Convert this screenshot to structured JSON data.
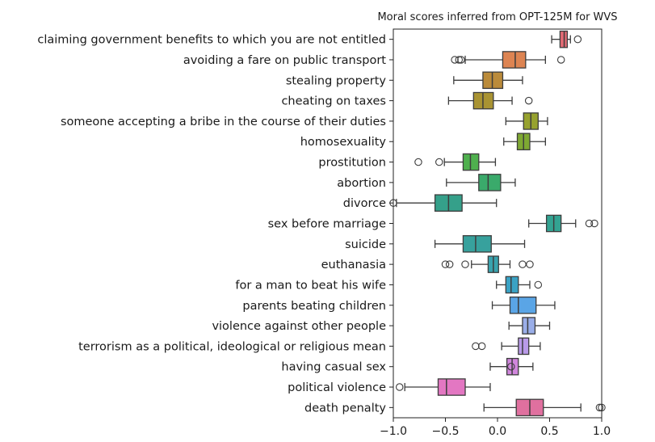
{
  "chart_data": {
    "type": "boxplot",
    "orientation": "horizontal",
    "title": "Moral scores inferred from OPT-125M for WVS",
    "xlabel": "",
    "ylabel": "",
    "xlim": [
      -1.0,
      1.0
    ],
    "xticks": [
      -1.0,
      -0.5,
      0.0,
      0.5,
      1.0
    ],
    "xtick_labels": [
      "−1.0",
      "−0.5",
      "0.0",
      "0.5",
      "1.0"
    ],
    "grid": false,
    "categories": [
      "claiming government benefits to which you are not entitled",
      "avoiding a fare on public transport",
      "stealing property",
      "cheating on taxes",
      "someone accepting a bribe in the course of their duties",
      "homosexuality",
      "prostitution",
      "abortion",
      "divorce",
      "sex before marriage",
      "suicide",
      "euthanasia",
      "for a man to beat his wife",
      "parents beating children",
      "violence against other people",
      "terrorism as a political, ideological or religious mean",
      "having casual sex",
      "political violence",
      "death penalty"
    ],
    "boxes": [
      {
        "whislo": 0.52,
        "q1": 0.6,
        "med": 0.64,
        "q3": 0.67,
        "whishi": 0.7,
        "fliers": [
          0.77
        ],
        "color": "#e36a74"
      },
      {
        "whislo": -0.31,
        "q1": 0.05,
        "med": 0.17,
        "q3": 0.27,
        "whishi": 0.46,
        "fliers": [
          -0.41,
          -0.37,
          -0.35,
          0.61
        ],
        "color": "#dd8452"
      },
      {
        "whislo": -0.42,
        "q1": -0.14,
        "med": -0.05,
        "q3": 0.05,
        "whishi": 0.24,
        "fliers": [],
        "color": "#bb8b3a"
      },
      {
        "whislo": -0.47,
        "q1": -0.23,
        "med": -0.14,
        "q3": -0.04,
        "whishi": 0.14,
        "fliers": [
          0.3
        ],
        "color": "#a99332"
      },
      {
        "whislo": 0.08,
        "q1": 0.25,
        "med": 0.32,
        "q3": 0.39,
        "whishi": 0.48,
        "fliers": [],
        "color": "#97a22f"
      },
      {
        "whislo": 0.06,
        "q1": 0.19,
        "med": 0.25,
        "q3": 0.31,
        "whishi": 0.46,
        "fliers": [],
        "color": "#7ea832"
      },
      {
        "whislo": -0.51,
        "q1": -0.33,
        "med": -0.26,
        "q3": -0.18,
        "whishi": -0.02,
        "fliers": [
          -0.76,
          -0.56
        ],
        "color": "#4fb04e"
      },
      {
        "whislo": -0.49,
        "q1": -0.18,
        "med": -0.09,
        "q3": 0.03,
        "whishi": 0.17,
        "fliers": [],
        "color": "#3aaa6b"
      },
      {
        "whislo": -0.97,
        "q1": -0.6,
        "med": -0.47,
        "q3": -0.34,
        "whishi": -0.01,
        "fliers": [
          -1.0
        ],
        "color": "#35a08a"
      },
      {
        "whislo": 0.3,
        "q1": 0.47,
        "med": 0.54,
        "q3": 0.61,
        "whishi": 0.75,
        "fliers": [
          0.88,
          0.93
        ],
        "color": "#33a392"
      },
      {
        "whislo": -0.6,
        "q1": -0.33,
        "med": -0.21,
        "q3": -0.06,
        "whishi": 0.26,
        "fliers": [],
        "color": "#37a19d"
      },
      {
        "whislo": -0.25,
        "q1": -0.09,
        "med": -0.04,
        "q3": 0.01,
        "whishi": 0.12,
        "fliers": [
          -0.5,
          -0.46,
          -0.31,
          0.24,
          0.31
        ],
        "color": "#39a3ae"
      },
      {
        "whislo": -0.01,
        "q1": 0.08,
        "med": 0.13,
        "q3": 0.2,
        "whishi": 0.31,
        "fliers": [
          0.39
        ],
        "color": "#3aa2c4"
      },
      {
        "whislo": -0.05,
        "q1": 0.12,
        "med": 0.2,
        "q3": 0.37,
        "whishi": 0.55,
        "fliers": [],
        "color": "#5aa5e6"
      },
      {
        "whislo": 0.11,
        "q1": 0.24,
        "med": 0.29,
        "q3": 0.36,
        "whishi": 0.5,
        "fliers": [],
        "color": "#9aaee8"
      },
      {
        "whislo": 0.04,
        "q1": 0.2,
        "med": 0.24,
        "q3": 0.3,
        "whishi": 0.41,
        "fliers": [
          -0.21,
          -0.15
        ],
        "color": "#b99ae8"
      },
      {
        "whislo": -0.07,
        "q1": 0.09,
        "med": 0.14,
        "q3": 0.2,
        "whishi": 0.34,
        "fliers": [
          0.13
        ],
        "color": "#d086dc"
      },
      {
        "whislo": -0.89,
        "q1": -0.57,
        "med": -0.49,
        "q3": -0.31,
        "whishi": -0.07,
        "fliers": [
          -0.94
        ],
        "color": "#e377c2"
      },
      {
        "whislo": -0.13,
        "q1": 0.18,
        "med": 0.31,
        "q3": 0.44,
        "whishi": 0.8,
        "fliers": [
          0.98,
          1.0
        ],
        "color": "#e0709f"
      }
    ]
  }
}
